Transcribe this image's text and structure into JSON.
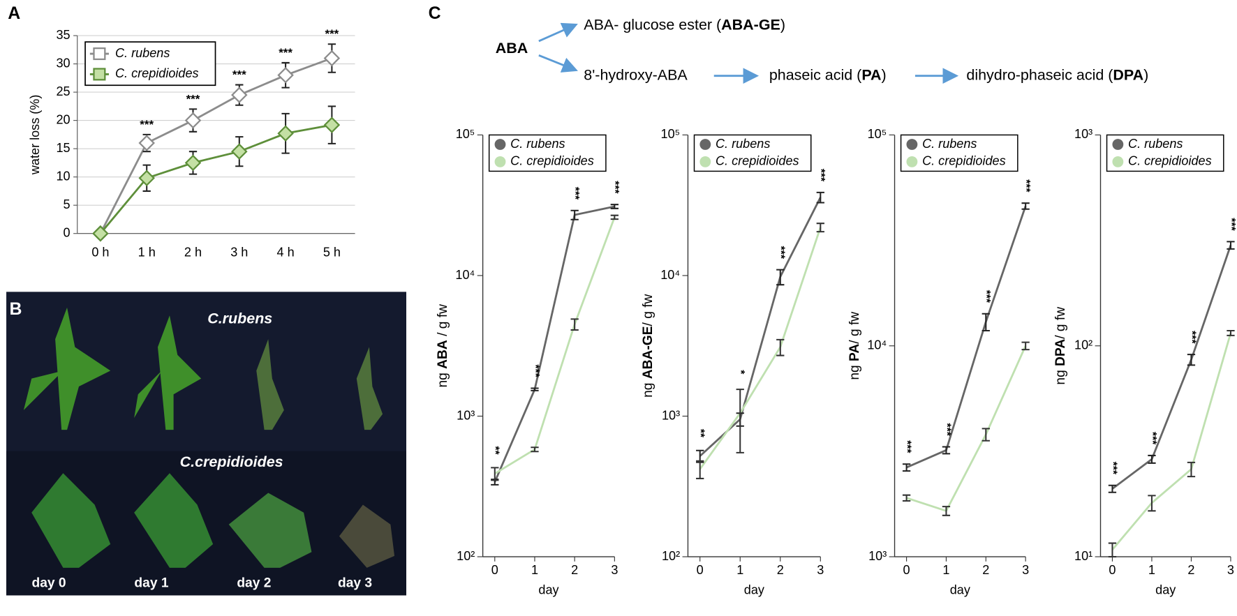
{
  "panel_labels": [
    "A",
    "B",
    "C"
  ],
  "photo": {
    "labels": [
      "C.rubens",
      "C.crepidioides"
    ],
    "days": [
      "day 0",
      "day 1",
      "day 2",
      "day 3"
    ]
  },
  "pathway": {
    "source": "ABA",
    "products": [
      [
        "ABA- glucose ester (",
        "ABA-GE",
        ")"
      ],
      [
        "8'-hydroxy-ABA"
      ],
      [
        "phaseic acid (",
        "PA",
        ")"
      ],
      [
        "dihydro-phaseic acid (",
        "DPA",
        ")"
      ]
    ]
  },
  "chart_data": [
    {
      "type": "line",
      "ylabel_parts": [
        "water loss (%)"
      ],
      "categories": [
        "0 h",
        "1 h",
        "2 h",
        "3 h",
        "4 h",
        "5 h"
      ],
      "ylim": [
        0,
        35
      ],
      "yticks": [
        0,
        5,
        10,
        15,
        20,
        25,
        30,
        35
      ],
      "grid": true,
      "legend": "top-left",
      "series": [
        {
          "name": "C. rubens",
          "color": "#8c8c8c",
          "marker_fill": "#ffffff",
          "values": [
            0,
            16,
            20,
            24.5,
            28,
            31
          ],
          "errors": [
            0,
            1.5,
            2,
            1.8,
            2.2,
            2.5
          ]
        },
        {
          "name": "C. crepidioides",
          "color": "#5e8f3a",
          "marker_fill": "#c4e0a4",
          "values": [
            0,
            9.8,
            12.5,
            14.5,
            17.7,
            19.2
          ],
          "errors": [
            0,
            2.3,
            2,
            2.6,
            3.5,
            3.3
          ]
        }
      ],
      "significance": [
        null,
        "***",
        "***",
        "***",
        "***",
        "***"
      ]
    },
    {
      "type": "logline",
      "ylabel_parts": [
        "ng ",
        "ABA",
        " / g fw"
      ],
      "xlabel": "day",
      "x": [
        0,
        1,
        2,
        3
      ],
      "xlim": [
        -0.3,
        3
      ],
      "xticks": [
        0,
        1,
        2,
        3
      ],
      "log_scale": true,
      "ylim": [
        100,
        100000
      ],
      "yticks": [
        {
          "value": 100,
          "label": "10²"
        },
        {
          "value": 1000,
          "label": "10³"
        },
        {
          "value": 10000,
          "label": "10⁴"
        },
        {
          "value": 100000,
          "label": "10⁵"
        }
      ],
      "legend": "top-left",
      "series": [
        {
          "name": "C. rubens",
          "color": "#666666",
          "values": [
            340,
            1550,
            27000,
            31000
          ],
          "errors": [
            15,
            30,
            2000,
            1000
          ]
        },
        {
          "name": "C. crepidioides",
          "color": "#bfe0b0",
          "values": [
            390,
            580,
            4500,
            26000
          ],
          "errors": [
            40,
            20,
            400,
            800
          ]
        }
      ],
      "significance": [
        "**",
        "***",
        "***",
        "***"
      ]
    },
    {
      "type": "logline",
      "ylabel_parts": [
        "ng ",
        "ABA-GE",
        "/ g fw"
      ],
      "xlabel": "day",
      "x": [
        0,
        1,
        2,
        3
      ],
      "xlim": [
        -0.3,
        3
      ],
      "xticks": [
        0,
        1,
        2,
        3
      ],
      "log_scale": true,
      "ylim": [
        100,
        100000
      ],
      "yticks": [
        {
          "value": 100,
          "label": "10²"
        },
        {
          "value": 1000,
          "label": "10³"
        },
        {
          "value": 10000,
          "label": "10⁴"
        },
        {
          "value": 100000,
          "label": "10⁵"
        }
      ],
      "legend": "top-left",
      "series": [
        {
          "name": "C. rubens",
          "color": "#666666",
          "values": [
            520,
            950,
            9800,
            36000
          ],
          "errors": [
            50,
            100,
            1200,
            3000
          ]
        },
        {
          "name": "C. crepidioides",
          "color": "#bfe0b0",
          "values": [
            420,
            1050,
            3100,
            22000
          ],
          "errors": [
            60,
            500,
            400,
            1500
          ]
        }
      ],
      "significance": [
        "**",
        "*",
        "***",
        "***"
      ]
    },
    {
      "type": "logline",
      "ylabel_parts": [
        "ng ",
        "PA",
        "/ g fw"
      ],
      "xlabel": "day",
      "x": [
        0,
        1,
        2,
        3
      ],
      "xlim": [
        -0.3,
        3
      ],
      "xticks": [
        0,
        1,
        2,
        3
      ],
      "log_scale": true,
      "ylim": [
        1000,
        100000
      ],
      "yticks": [
        {
          "value": 1000,
          "label": "10³"
        },
        {
          "value": 10000,
          "label": "10⁴"
        },
        {
          "value": 100000,
          "label": "10⁵"
        }
      ],
      "legend": "top-left",
      "series": [
        {
          "name": "C. rubens",
          "color": "#666666",
          "values": [
            2650,
            3200,
            13000,
            46000
          ],
          "errors": [
            100,
            120,
            1200,
            1500
          ]
        },
        {
          "name": "C. crepidioides",
          "color": "#bfe0b0",
          "values": [
            1900,
            1650,
            3800,
            10000
          ],
          "errors": [
            60,
            80,
            250,
            400
          ]
        }
      ],
      "significance": [
        "***",
        "***",
        "***",
        "***"
      ]
    },
    {
      "type": "logline",
      "ylabel_parts": [
        "ng ",
        "DPA",
        "/ g fw"
      ],
      "xlabel": "day",
      "x": [
        0,
        1,
        2,
        3
      ],
      "xlim": [
        -0.3,
        3
      ],
      "xticks": [
        0,
        1,
        2,
        3
      ],
      "log_scale": true,
      "ylim": [
        10,
        1000
      ],
      "yticks": [
        {
          "value": 10,
          "label": "10¹"
        },
        {
          "value": 100,
          "label": "10²"
        },
        {
          "value": 1000,
          "label": "10³"
        }
      ],
      "legend": "top-left",
      "series": [
        {
          "name": "C. rubens",
          "color": "#666666",
          "values": [
            21,
            29,
            86,
            300
          ],
          "errors": [
            0.8,
            1.2,
            5,
            12
          ]
        },
        {
          "name": "C. crepidioides",
          "color": "#bfe0b0",
          "values": [
            10.8,
            18,
            26,
            115
          ],
          "errors": [
            0.8,
            1.5,
            2,
            3
          ]
        }
      ],
      "significance": [
        "***",
        "***",
        "***",
        "***"
      ]
    }
  ]
}
